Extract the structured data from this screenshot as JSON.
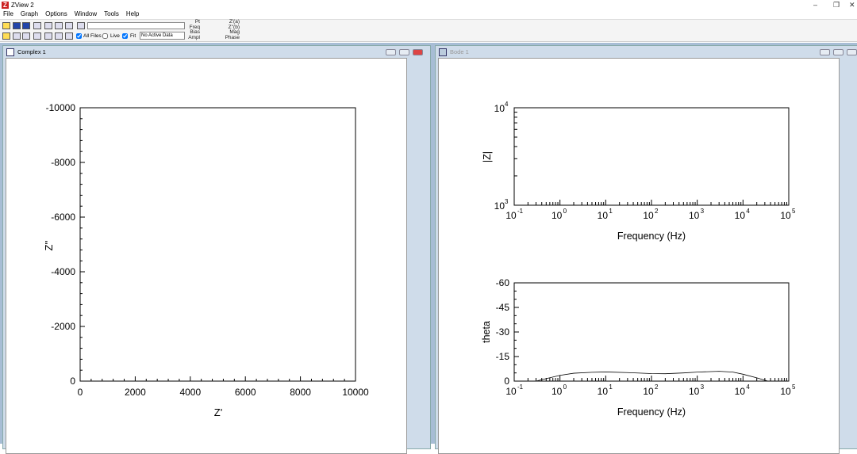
{
  "app": {
    "title": "ZView 2"
  },
  "menu": [
    "File",
    "Graph",
    "Options",
    "Window",
    "Tools",
    "Help"
  ],
  "toolbar": {
    "all_files": "All Files",
    "live": "Live",
    "fit": "Fit",
    "data_select": "No Active Data",
    "all_files_checked": true,
    "live_checked": false,
    "fit_checked": true,
    "readouts_left": [
      "Pt",
      "Freq",
      "Bias",
      "Ampl"
    ],
    "readouts_right": [
      "Z'(a)",
      "Z''(b)",
      "Mag",
      "Phase"
    ]
  },
  "windows": {
    "complex": {
      "title": "Complex 1",
      "xlabel": "Z'",
      "ylabel": "Z''",
      "xticks": [
        "0",
        "2000",
        "4000",
        "6000",
        "8000",
        "10000"
      ],
      "yticks": [
        "0",
        "-2000",
        "-4000",
        "-6000",
        "-8000",
        "-10000"
      ]
    },
    "bode": {
      "title": "Bode 1"
    }
  },
  "chart_data": [
    {
      "type": "scatter",
      "title": "",
      "xlabel": "Z'",
      "ylabel": "Z''",
      "xlim": [
        0,
        10000
      ],
      "ylim": [
        0,
        -10000
      ],
      "series": []
    },
    {
      "type": "line",
      "xlabel": "Frequency (Hz)",
      "ylabel": "|Z|",
      "xscale": "log",
      "yscale": "log",
      "xlim": [
        0.1,
        100000
      ],
      "ylim": [
        1000,
        10000
      ],
      "xticks": [
        "10-1",
        "100",
        "101",
        "102",
        "103",
        "104",
        "105"
      ],
      "yticks": [
        "103",
        "104"
      ],
      "series": []
    },
    {
      "type": "line",
      "xlabel": "Frequency (Hz)",
      "ylabel": "theta",
      "xscale": "log",
      "xlim": [
        0.1,
        100000
      ],
      "ylim": [
        0,
        -60
      ],
      "yticks": [
        "0",
        "-15",
        "-30",
        "-45",
        "-60"
      ],
      "xticks": [
        "10-1",
        "100",
        "101",
        "102",
        "103",
        "104",
        "105"
      ],
      "series": [
        {
          "x": [
            0.3,
            0.5,
            1,
            2,
            5,
            10,
            30,
            100,
            200,
            500,
            1000,
            3000,
            6000,
            10000,
            20000,
            35000
          ],
          "y": [
            0,
            -1.5,
            -3.5,
            -4.8,
            -5.4,
            -5.6,
            -5.2,
            -4.6,
            -4.5,
            -5.0,
            -5.5,
            -6.0,
            -5.5,
            -4.2,
            -2.0,
            0
          ]
        }
      ]
    }
  ]
}
